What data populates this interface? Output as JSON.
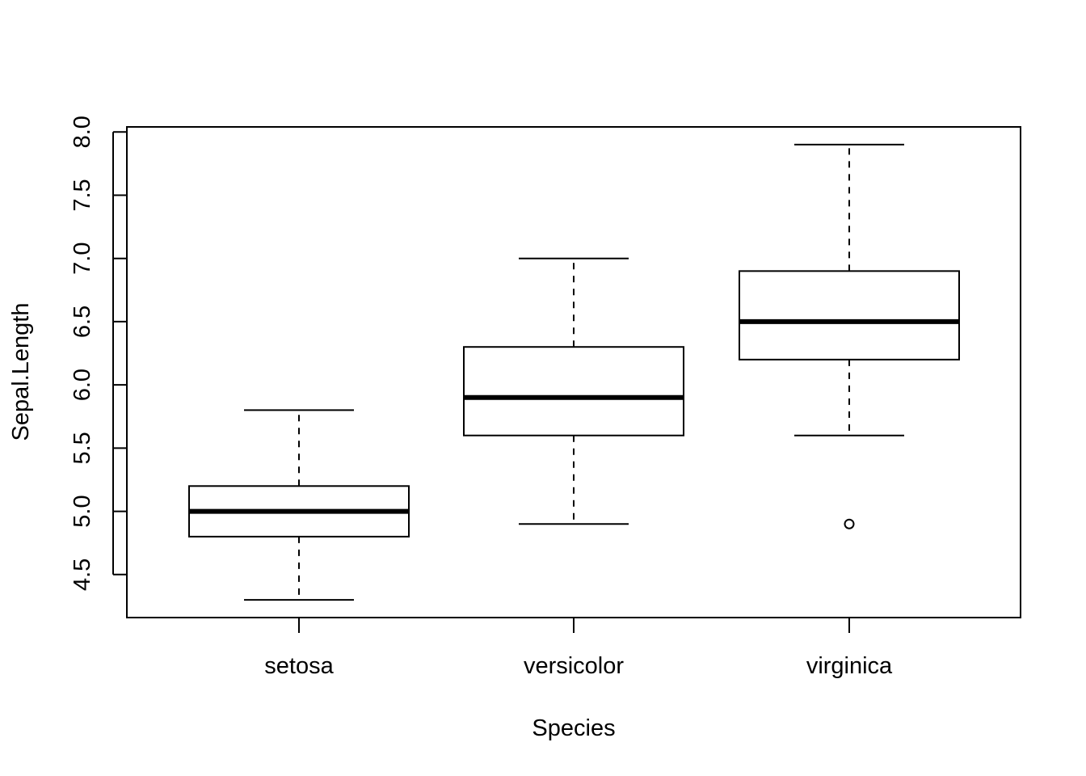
{
  "chart_data": {
    "type": "boxplot",
    "title": "",
    "xlabel": "Species",
    "ylabel": "Sepal.Length",
    "ylim": [
      4.16,
      8.04
    ],
    "yticks": [
      "4.5",
      "5.0",
      "5.5",
      "6.0",
      "6.5",
      "7.0",
      "7.5",
      "8.0"
    ],
    "grid": false,
    "categories": [
      "setosa",
      "versicolor",
      "virginica"
    ],
    "boxes": [
      {
        "category": "setosa",
        "whisker_low": 4.3,
        "q1": 4.8,
        "median": 5.0,
        "q3": 5.2,
        "whisker_high": 5.8,
        "outliers": []
      },
      {
        "category": "versicolor",
        "whisker_low": 4.9,
        "q1": 5.6,
        "median": 5.9,
        "q3": 6.3,
        "whisker_high": 7.0,
        "outliers": []
      },
      {
        "category": "virginica",
        "whisker_low": 5.6,
        "q1": 6.2,
        "median": 6.5,
        "q3": 6.9,
        "whisker_high": 7.9,
        "outliers": [
          4.9
        ]
      }
    ]
  },
  "colors": {
    "stroke": "#000000",
    "box_fill": "#ffffff",
    "background": "#ffffff"
  }
}
